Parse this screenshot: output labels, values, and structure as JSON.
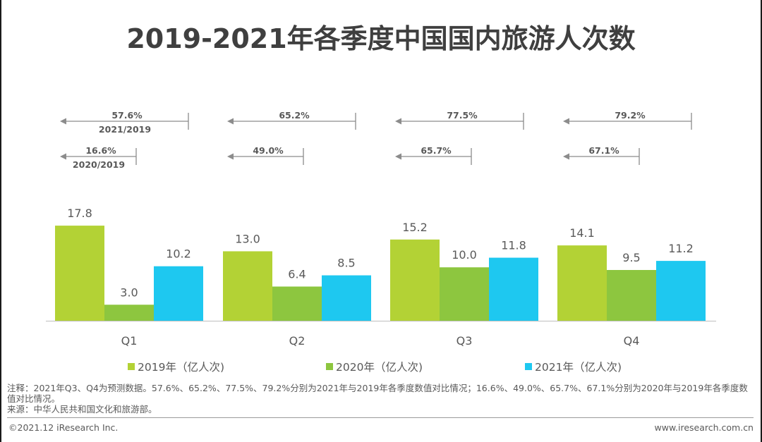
{
  "title": "2019-2021年各季度中国国内旅游人次数",
  "chart_data": {
    "type": "bar",
    "title": "2019-2021年各季度中国国内旅游人次数",
    "categories": [
      "Q1",
      "Q2",
      "Q3",
      "Q4"
    ],
    "series": [
      {
        "name": "2019年（亿人次)",
        "color": "#b3d235",
        "values": [
          17.8,
          13.0,
          15.2,
          14.1
        ],
        "labels": [
          "17.8",
          "13.0",
          "15.2",
          "14.1"
        ]
      },
      {
        "name": "2020年（亿人次)",
        "color": "#8dc63f",
        "values": [
          3.0,
          6.4,
          10.0,
          9.5
        ],
        "labels": [
          "3.0",
          "6.4",
          "10.0",
          "9.5"
        ]
      },
      {
        "name": "2021年（亿人次)",
        "color": "#1ec8f0",
        "values": [
          10.2,
          8.5,
          11.8,
          11.2
        ],
        "labels": [
          "10.2",
          "8.5",
          "11.8",
          "11.2"
        ]
      }
    ],
    "ratios_2021_vs_2019": [
      "57.6%",
      "65.2%",
      "77.5%",
      "79.2%"
    ],
    "ratios_2020_vs_2019": [
      "16.6%",
      "49.0%",
      "65.7%",
      "67.1%"
    ],
    "ratio_caption_2021": "2021/2019",
    "ratio_caption_2020": "2020/2019",
    "xlabel": "",
    "ylabel": "",
    "ylim": [
      0,
      20
    ],
    "grid": false,
    "legend_position": "bottom"
  },
  "note": "注释：2021年Q3、Q4为预测数据。57.6%、65.2%、77.5%、79.2%分别为2021年与2019年各季度数值对比情况；16.6%、49.0%、65.7%、67.1%分别为2020年与2019年各季度数值对比情况。",
  "source": "来源：中华人民共和国文化和旅游部。",
  "footer": {
    "copyright": "©2021.12 iResearch Inc.",
    "website": "www.iresearch.com.cn"
  }
}
